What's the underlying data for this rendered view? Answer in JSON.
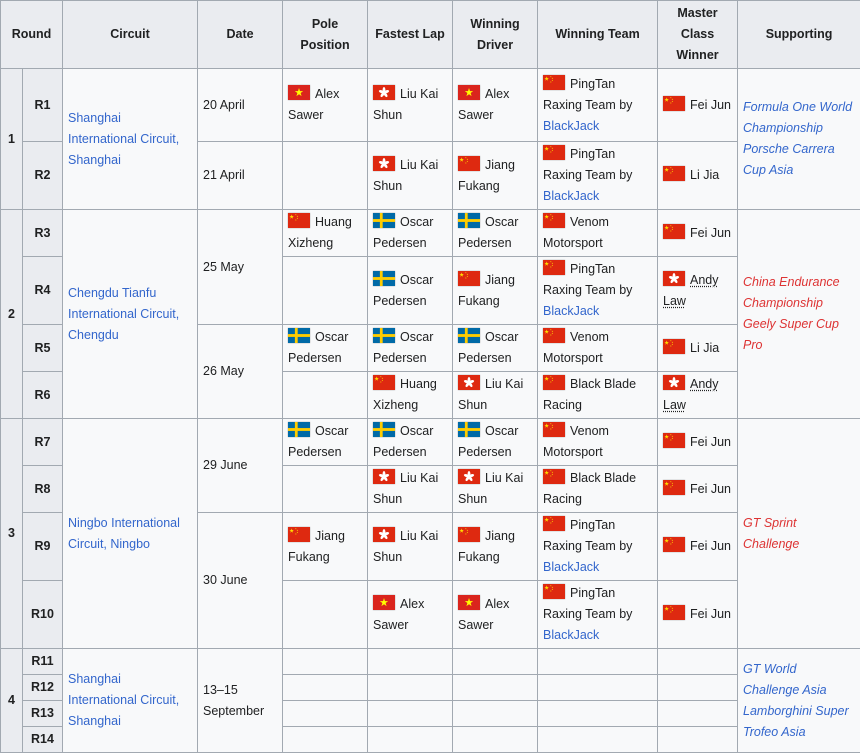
{
  "colors": {
    "link_blue": "#3366cc",
    "link_red": "#dd3333",
    "header_bg": "#eaecf0",
    "row_bg": "#f8f9fa",
    "border": "#a2a9b1",
    "flag_red_china": "#de2910",
    "flag_red_vietnam": "#da251d",
    "flag_blue_sweden": "#006aa7",
    "flag_yellow": "#ffde00"
  },
  "flag_legend": {
    "CN": "China",
    "HK": "Hong Kong",
    "SE": "Sweden",
    "VN": "Vietnam"
  },
  "headers": {
    "round": "Round",
    "circuit": "Circuit",
    "date": "Date",
    "pole": "Pole Position",
    "fastest_lap": "Fastest Lap",
    "winning_driver": "Winning Driver",
    "winning_team": "Winning Team",
    "master_class_winner": "Master Class Winner",
    "supporting": "Supporting"
  },
  "rounds": [
    {
      "number": "1",
      "circuit": "Shanghai International Circuit, Shanghai",
      "supporting": [
        "Formula One World Championship",
        "Porsche Carrera Cup Asia"
      ],
      "supporting_link_color": "blue",
      "races": [
        {
          "id": "R1",
          "date": "20 April",
          "pole": {
            "flag": "VN",
            "name": "Alex Sawer"
          },
          "fastest_lap": {
            "flag": "HK",
            "name": "Liu Kai Shun"
          },
          "winning_driver": {
            "flag": "VN",
            "name": "Alex Sawer"
          },
          "winning_team": {
            "flag": "CN",
            "text": "PingTan Raxing Team by",
            "link": "BlackJack"
          },
          "master": {
            "flag": "CN",
            "name": "Fei Jun"
          }
        },
        {
          "id": "R2",
          "date": "21 April",
          "fastest_lap": {
            "flag": "HK",
            "name": "Liu Kai Shun"
          },
          "winning_driver": {
            "flag": "CN",
            "name": "Jiang Fukang"
          },
          "winning_team": {
            "flag": "CN",
            "text": "PingTan Raxing Team by",
            "link": "BlackJack"
          },
          "master": {
            "flag": "CN",
            "name": "Li Jia"
          }
        }
      ]
    },
    {
      "number": "2",
      "circuit": "Chengdu Tianfu International Circuit, Chengdu",
      "supporting": [
        "China Endurance Championship",
        "Geely Super Cup Pro"
      ],
      "supporting_link_color": "red",
      "races": [
        {
          "id": "R3",
          "date": "25 May",
          "pole": {
            "flag": "CN",
            "name": "Huang Xizheng"
          },
          "fastest_lap": {
            "flag": "SE",
            "name": "Oscar Pedersen"
          },
          "winning_driver": {
            "flag": "SE",
            "name": "Oscar Pedersen"
          },
          "winning_team": {
            "flag": "CN",
            "text": "Venom Motorsport"
          },
          "master": {
            "flag": "CN",
            "name": "Fei Jun"
          }
        },
        {
          "id": "R4",
          "fastest_lap": {
            "flag": "SE",
            "name": "Oscar Pedersen"
          },
          "winning_driver": {
            "flag": "CN",
            "name": "Jiang Fukang"
          },
          "winning_team": {
            "flag": "CN",
            "text": "PingTan Raxing Team by",
            "link": "BlackJack"
          },
          "master": {
            "flag": "HK",
            "name": "Andy Law",
            "dotted": true
          }
        },
        {
          "id": "R5",
          "date": "26 May",
          "pole": {
            "flag": "SE",
            "name": "Oscar Pedersen"
          },
          "fastest_lap": {
            "flag": "SE",
            "name": "Oscar Pedersen"
          },
          "winning_driver": {
            "flag": "SE",
            "name": "Oscar Pedersen"
          },
          "winning_team": {
            "flag": "CN",
            "text": "Venom Motorsport"
          },
          "master": {
            "flag": "CN",
            "name": "Li Jia"
          }
        },
        {
          "id": "R6",
          "fastest_lap": {
            "flag": "CN",
            "name": "Huang Xizheng"
          },
          "winning_driver": {
            "flag": "HK",
            "name": "Liu Kai Shun"
          },
          "winning_team": {
            "flag": "CN",
            "text": "Black Blade Racing"
          },
          "master": {
            "flag": "HK",
            "name": "Andy Law",
            "dotted": true
          }
        }
      ]
    },
    {
      "number": "3",
      "circuit": "Ningbo International Circuit, Ningbo",
      "supporting": [
        "GT Sprint Challenge"
      ],
      "supporting_link_color": "red",
      "races": [
        {
          "id": "R7",
          "date": "29 June",
          "pole": {
            "flag": "SE",
            "name": "Oscar Pedersen"
          },
          "fastest_lap": {
            "flag": "SE",
            "name": "Oscar Pedersen"
          },
          "winning_driver": {
            "flag": "SE",
            "name": "Oscar Pedersen"
          },
          "winning_team": {
            "flag": "CN",
            "text": "Venom Motorsport"
          },
          "master": {
            "flag": "CN",
            "name": "Fei Jun"
          }
        },
        {
          "id": "R8",
          "fastest_lap": {
            "flag": "HK",
            "name": "Liu Kai Shun"
          },
          "winning_driver": {
            "flag": "HK",
            "name": "Liu Kai Shun"
          },
          "winning_team": {
            "flag": "CN",
            "text": "Black Blade Racing"
          },
          "master": {
            "flag": "CN",
            "name": "Fei Jun"
          }
        },
        {
          "id": "R9",
          "date": "30 June",
          "pole": {
            "flag": "CN",
            "name": "Jiang Fukang"
          },
          "fastest_lap": {
            "flag": "HK",
            "name": "Liu Kai Shun"
          },
          "winning_driver": {
            "flag": "CN",
            "name": "Jiang Fukang"
          },
          "winning_team": {
            "flag": "CN",
            "text": "PingTan Raxing Team by",
            "link": "BlackJack"
          },
          "master": {
            "flag": "CN",
            "name": "Fei Jun"
          }
        },
        {
          "id": "R10",
          "fastest_lap": {
            "flag": "VN",
            "name": "Alex Sawer"
          },
          "winning_driver": {
            "flag": "VN",
            "name": "Alex Sawer"
          },
          "winning_team": {
            "flag": "CN",
            "text": "PingTan Raxing Team by",
            "link": "BlackJack"
          },
          "master": {
            "flag": "CN",
            "name": "Fei Jun"
          }
        }
      ]
    },
    {
      "number": "4",
      "circuit": "Shanghai International Circuit, Shanghai",
      "date": "13–15 September",
      "supporting": [
        "GT World Challenge Asia",
        "Lamborghini Super Trofeo Asia"
      ],
      "supporting_link_color": "blue",
      "races": [
        {
          "id": "R11"
        },
        {
          "id": "R12"
        },
        {
          "id": "R13"
        },
        {
          "id": "R14"
        }
      ]
    }
  ]
}
